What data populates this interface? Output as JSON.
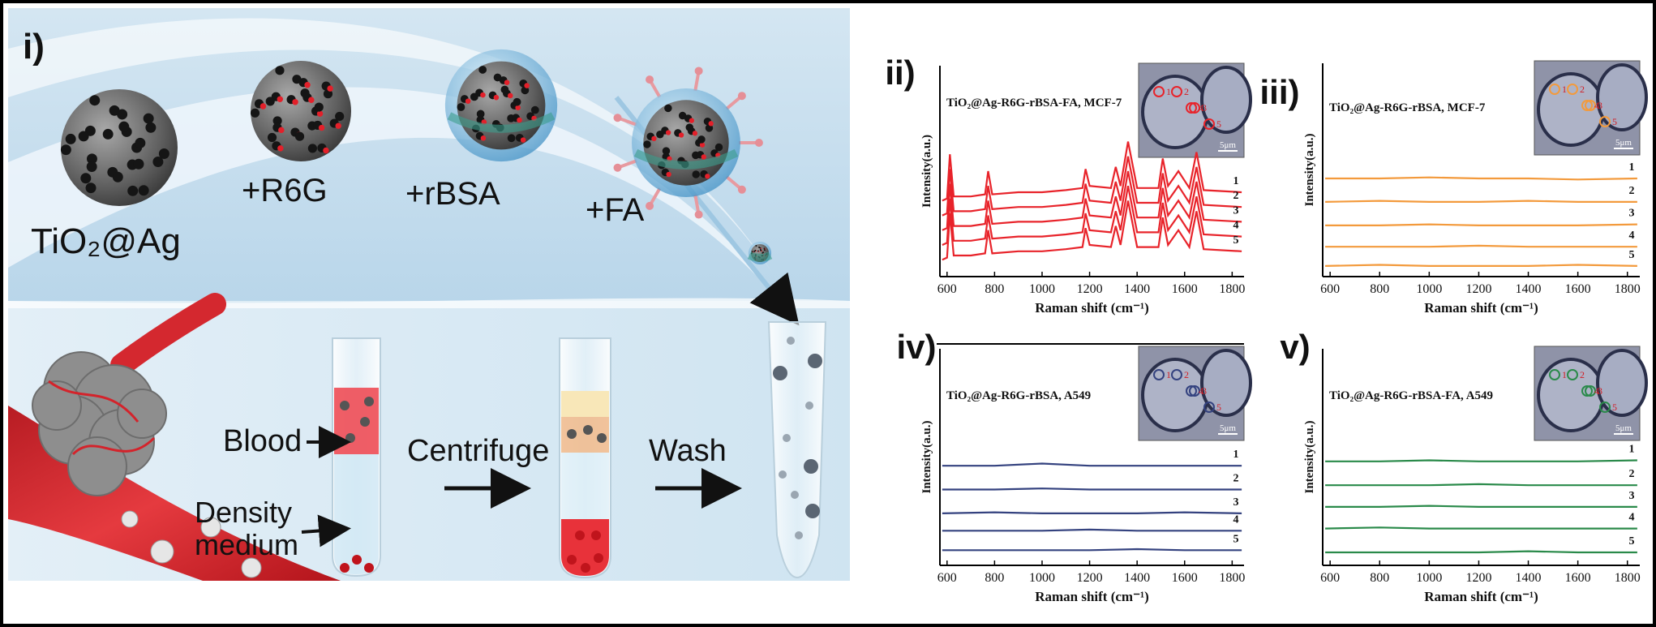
{
  "schematic": {
    "panel_label": "i)",
    "steps": [
      "TiO₂@Ag",
      "+R6G",
      "+rBSA",
      "+FA"
    ],
    "blood": "Blood",
    "density": [
      "Density",
      "medium"
    ],
    "centrifuge": "Centrifuge",
    "wash": "Wash"
  },
  "chart_data": [
    {
      "type": "line",
      "panel_label": "ii)",
      "title": "TiO₂@Ag-R6G-rBSA-FA, MCF-7",
      "xlabel": "Raman shift (cm⁻¹)",
      "ylabel": "Intensity(a.u.)",
      "scale_bar": "5μm",
      "inset_labels": [
        "1",
        "2",
        "3",
        "4",
        "5"
      ],
      "xlim": [
        570,
        1850
      ],
      "xticks": [
        600,
        800,
        1000,
        1200,
        1400,
        1600,
        1800
      ],
      "ylim": [
        0,
        10
      ],
      "x": [
        580,
        600,
        612,
        628,
        700,
        760,
        773,
        790,
        900,
        1000,
        1100,
        1170,
        1183,
        1200,
        1290,
        1310,
        1330,
        1362,
        1400,
        1490,
        1508,
        1530,
        1574,
        1620,
        1650,
        1680,
        1840
      ],
      "series": [
        {
          "name": "1",
          "color": "#e8232a",
          "values": [
            3.6,
            3.7,
            5.8,
            3.8,
            3.8,
            3.9,
            5.0,
            3.9,
            4.0,
            4.0,
            4.1,
            4.2,
            5.1,
            4.3,
            4.2,
            5.2,
            4.3,
            6.4,
            4.2,
            4.2,
            5.6,
            4.3,
            5.0,
            4.2,
            5.9,
            4.1,
            4.0
          ]
        },
        {
          "name": "2",
          "color": "#e8232a",
          "values": [
            2.9,
            3.0,
            5.1,
            3.1,
            3.1,
            3.2,
            4.3,
            3.2,
            3.3,
            3.3,
            3.4,
            3.5,
            4.4,
            3.6,
            3.5,
            4.5,
            3.6,
            5.7,
            3.5,
            3.5,
            4.9,
            3.6,
            4.3,
            3.5,
            5.2,
            3.4,
            3.3
          ]
        },
        {
          "name": "3",
          "color": "#e8232a",
          "values": [
            2.2,
            2.3,
            4.4,
            2.4,
            2.4,
            2.5,
            3.6,
            2.5,
            2.6,
            2.6,
            2.7,
            2.8,
            3.7,
            2.9,
            2.8,
            3.8,
            2.9,
            5.0,
            2.8,
            2.8,
            4.2,
            2.9,
            3.6,
            2.8,
            4.5,
            2.7,
            2.6
          ]
        },
        {
          "name": "4",
          "color": "#e8232a",
          "values": [
            1.5,
            1.6,
            3.7,
            1.7,
            1.7,
            1.8,
            2.9,
            1.8,
            1.9,
            1.9,
            2.0,
            2.1,
            3.0,
            2.2,
            2.1,
            3.1,
            2.2,
            4.3,
            2.1,
            2.1,
            3.5,
            2.2,
            2.9,
            2.1,
            3.8,
            2.0,
            1.9
          ]
        },
        {
          "name": "5",
          "color": "#e8232a",
          "values": [
            0.8,
            0.9,
            3.0,
            1.0,
            1.0,
            1.1,
            2.2,
            1.1,
            1.2,
            1.2,
            1.3,
            1.4,
            2.3,
            1.5,
            1.4,
            2.4,
            1.5,
            3.6,
            1.4,
            1.4,
            2.8,
            1.5,
            2.2,
            1.4,
            3.1,
            1.3,
            1.2
          ]
        }
      ]
    },
    {
      "type": "line",
      "panel_label": "iii)",
      "title": "TiO₂@Ag-R6G-rBSA, MCF-7",
      "xlabel": "Raman shift (cm⁻¹)",
      "ylabel": "Intensity(a.u.)",
      "scale_bar": "5μm",
      "inset_labels": [
        "1",
        "2",
        "3",
        "4",
        "5"
      ],
      "xlim": [
        570,
        1850
      ],
      "xticks": [
        600,
        800,
        1000,
        1200,
        1400,
        1600,
        1800
      ],
      "ylim": [
        0,
        10
      ],
      "x": [
        580,
        800,
        1000,
        1200,
        1400,
        1600,
        1840
      ],
      "series": [
        {
          "name": "1",
          "color": "#f39a3c",
          "values": [
            4.6,
            4.6,
            4.65,
            4.6,
            4.6,
            4.55,
            4.6
          ]
        },
        {
          "name": "2",
          "color": "#f39a3c",
          "values": [
            3.5,
            3.55,
            3.5,
            3.5,
            3.55,
            3.5,
            3.5
          ]
        },
        {
          "name": "3",
          "color": "#f39a3c",
          "values": [
            2.4,
            2.4,
            2.45,
            2.4,
            2.4,
            2.4,
            2.45
          ]
        },
        {
          "name": "4",
          "color": "#f39a3c",
          "values": [
            1.4,
            1.4,
            1.4,
            1.45,
            1.4,
            1.4,
            1.4
          ]
        },
        {
          "name": "5",
          "color": "#f39a3c",
          "values": [
            0.5,
            0.55,
            0.5,
            0.5,
            0.5,
            0.55,
            0.5
          ]
        }
      ]
    },
    {
      "type": "line",
      "panel_label": "iv)",
      "title": "TiO₂@Ag-R6G-rBSA, A549",
      "xlabel": "Raman shift (cm⁻¹)",
      "ylabel": "Intensity(a.u.)",
      "scale_bar": "5μm",
      "inset_labels": [
        "1",
        "2",
        "3",
        "4",
        "5"
      ],
      "xlim": [
        570,
        1850
      ],
      "xticks": [
        600,
        800,
        1000,
        1200,
        1400,
        1600,
        1800
      ],
      "ylim": [
        0,
        10
      ],
      "x": [
        580,
        800,
        1000,
        1200,
        1400,
        1600,
        1840
      ],
      "series": [
        {
          "name": "1",
          "color": "#34427f",
          "values": [
            4.6,
            4.6,
            4.7,
            4.6,
            4.6,
            4.6,
            4.6
          ]
        },
        {
          "name": "2",
          "color": "#34427f",
          "values": [
            3.5,
            3.5,
            3.55,
            3.5,
            3.5,
            3.5,
            3.5
          ]
        },
        {
          "name": "3",
          "color": "#34427f",
          "values": [
            2.4,
            2.45,
            2.4,
            2.4,
            2.4,
            2.45,
            2.4
          ]
        },
        {
          "name": "4",
          "color": "#34427f",
          "values": [
            1.6,
            1.6,
            1.6,
            1.65,
            1.6,
            1.6,
            1.6
          ]
        },
        {
          "name": "5",
          "color": "#34427f",
          "values": [
            0.7,
            0.7,
            0.7,
            0.7,
            0.75,
            0.7,
            0.7
          ]
        }
      ]
    },
    {
      "type": "line",
      "panel_label": "v)",
      "title": "TiO₂@Ag-R6G-rBSA-FA, A549",
      "xlabel": "Raman shift (cm⁻¹)",
      "ylabel": "Intensity(a.u.)",
      "scale_bar": "5μm",
      "inset_labels": [
        "1",
        "2",
        "3",
        "4",
        "5"
      ],
      "xlim": [
        570,
        1850
      ],
      "xticks": [
        600,
        800,
        1000,
        1200,
        1400,
        1600,
        1800
      ],
      "ylim": [
        0,
        10
      ],
      "x": [
        580,
        800,
        1000,
        1200,
        1400,
        1600,
        1840
      ],
      "series": [
        {
          "name": "1",
          "color": "#2a8a4a",
          "values": [
            4.8,
            4.8,
            4.85,
            4.8,
            4.8,
            4.8,
            4.85
          ]
        },
        {
          "name": "2",
          "color": "#2a8a4a",
          "values": [
            3.7,
            3.7,
            3.7,
            3.75,
            3.7,
            3.7,
            3.7
          ]
        },
        {
          "name": "3",
          "color": "#2a8a4a",
          "values": [
            2.7,
            2.7,
            2.75,
            2.7,
            2.7,
            2.7,
            2.7
          ]
        },
        {
          "name": "4",
          "color": "#2a8a4a",
          "values": [
            1.7,
            1.75,
            1.7,
            1.7,
            1.7,
            1.7,
            1.7
          ]
        },
        {
          "name": "5",
          "color": "#2a8a4a",
          "values": [
            0.6,
            0.6,
            0.6,
            0.6,
            0.65,
            0.6,
            0.6
          ]
        }
      ]
    }
  ]
}
